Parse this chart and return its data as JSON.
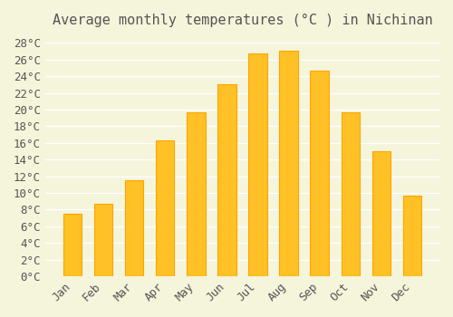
{
  "title": "Average monthly temperatures (°C ) in Nichinan",
  "months": [
    "Jan",
    "Feb",
    "Mar",
    "Apr",
    "May",
    "Jun",
    "Jul",
    "Aug",
    "Sep",
    "Oct",
    "Nov",
    "Dec"
  ],
  "values": [
    7.5,
    8.7,
    11.5,
    16.3,
    19.7,
    23.0,
    26.7,
    27.1,
    24.7,
    19.7,
    15.0,
    9.7
  ],
  "bar_color": "#FFC125",
  "bar_edge_color": "#FFA500",
  "background_color": "#F5F5DC",
  "grid_color": "#FFFFFF",
  "text_color": "#555555",
  "ylim": [
    0,
    29
  ],
  "ytick_step": 2,
  "title_fontsize": 11,
  "tick_fontsize": 9,
  "font_family": "monospace"
}
